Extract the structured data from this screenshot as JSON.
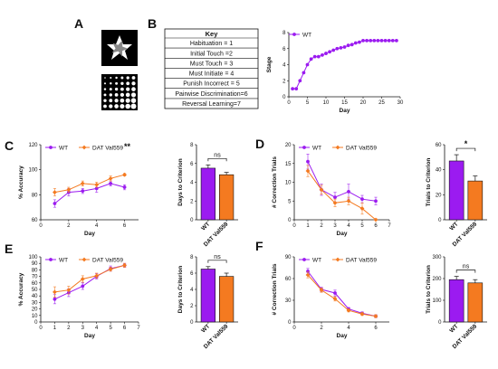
{
  "colors": {
    "wt": "#9b1bf0",
    "val": "#f47a20",
    "axis": "#111111"
  },
  "panel_labels": [
    "A",
    "B",
    "C",
    "D",
    "E",
    "F"
  ],
  "key": {
    "title": "Key",
    "items": [
      "Habituation = 1",
      "Initial Touch =2",
      "Must Touch = 3",
      "Must Initiate = 4",
      "Punish Incorrect = 5",
      "Pairwise Discrimination=6",
      "Reversal Learning=7"
    ]
  },
  "chart_data": [
    {
      "id": "B",
      "type": "line",
      "xlabel": "Day",
      "ylabel": "Stage",
      "xlim": [
        0,
        30
      ],
      "ylim": [
        0,
        8
      ],
      "xticks": [
        0,
        5,
        10,
        15,
        20,
        25,
        30
      ],
      "yticks": [
        0,
        2,
        4,
        6,
        8
      ],
      "legend": "top-left",
      "series": [
        {
          "name": "WT",
          "color": "#9b1bf0",
          "x": [
            1,
            2,
            3,
            4,
            5,
            6,
            7,
            8,
            9,
            10,
            11,
            12,
            13,
            14,
            15,
            16,
            17,
            18,
            19,
            20,
            21,
            22,
            23,
            24,
            25,
            26,
            27,
            28,
            29
          ],
          "y": [
            1,
            1,
            2,
            3,
            4,
            4.7,
            5,
            5,
            5.2,
            5.4,
            5.6,
            5.8,
            6,
            6.1,
            6.2,
            6.4,
            6.5,
            6.7,
            6.8,
            7,
            7,
            7,
            7,
            7,
            7,
            7,
            7,
            7,
            7
          ]
        }
      ]
    },
    {
      "id": "C-line",
      "type": "line",
      "xlabel": "Day",
      "ylabel": "% Accuracy",
      "xlim": [
        0,
        7
      ],
      "ylim": [
        60,
        120
      ],
      "xticks": [
        0,
        2,
        4,
        6
      ],
      "yticks": [
        60,
        80,
        100,
        120
      ],
      "legend": "top",
      "annotation": "**",
      "series": [
        {
          "name": "WT",
          "color": "#9b1bf0",
          "x": [
            1,
            2,
            3,
            4,
            5,
            6
          ],
          "y": [
            73,
            82,
            83,
            85,
            89,
            86
          ],
          "err": [
            3,
            3,
            2,
            3,
            2,
            2
          ]
        },
        {
          "name": "DAT Val559",
          "color": "#f47a20",
          "x": [
            1,
            2,
            3,
            4,
            5,
            6
          ],
          "y": [
            82,
            84,
            89,
            88,
            93,
            96
          ],
          "err": [
            3,
            2,
            2,
            2,
            2,
            1
          ]
        }
      ]
    },
    {
      "id": "C-bar",
      "type": "bar",
      "ylabel": "Days to  Criterion",
      "categories": [
        "WT",
        "DAT Val559"
      ],
      "ylim": [
        0,
        8
      ],
      "yticks": [
        0,
        2,
        4,
        6,
        8
      ],
      "values": [
        5.5,
        4.8
      ],
      "err": [
        0.35,
        0.25
      ],
      "significance": "ns"
    },
    {
      "id": "D-line",
      "type": "line",
      "xlabel": "Day",
      "ylabel": "# Correction  Trials",
      "xlim": [
        0,
        7
      ],
      "ylim": [
        0,
        20
      ],
      "xticks": [
        0,
        1,
        2,
        3,
        4,
        5,
        6,
        7
      ],
      "yticks": [
        0,
        5,
        10,
        15,
        20
      ],
      "legend": "top",
      "series": [
        {
          "name": "WT",
          "color": "#9b1bf0",
          "x": [
            1,
            2,
            3,
            4,
            5,
            6
          ],
          "y": [
            15.5,
            8,
            6,
            7.5,
            5.5,
            5
          ],
          "err": [
            2,
            1.5,
            1.3,
            2,
            1,
            1
          ]
        },
        {
          "name": "DAT Val559",
          "color": "#f47a20",
          "x": [
            1,
            2,
            3,
            4,
            5,
            6
          ],
          "y": [
            13,
            8,
            4.5,
            5,
            3,
            0
          ],
          "err": [
            1.5,
            1.2,
            1,
            1,
            1.5,
            0.3
          ]
        }
      ]
    },
    {
      "id": "D-bar",
      "type": "bar",
      "ylabel": "Trials to Criterion",
      "categories": [
        "WT",
        "DAT Val559"
      ],
      "ylim": [
        0,
        60
      ],
      "yticks": [
        0,
        20,
        40,
        60
      ],
      "values": [
        47,
        31
      ],
      "err": [
        5,
        4
      ],
      "significance": "*"
    },
    {
      "id": "E-line",
      "type": "line",
      "xlabel": "Day",
      "ylabel": "% Accuracy",
      "xlim": [
        0,
        7
      ],
      "ylim": [
        0,
        100
      ],
      "xticks": [
        0,
        1,
        2,
        3,
        4,
        5,
        6,
        7
      ],
      "yticks": [
        0,
        10,
        20,
        30,
        40,
        50,
        60,
        70,
        80,
        90,
        100
      ],
      "legend": "top",
      "series": [
        {
          "name": "WT",
          "color": "#9b1bf0",
          "x": [
            1,
            2,
            3,
            4,
            5,
            6
          ],
          "y": [
            35,
            45,
            55,
            70,
            82,
            87
          ],
          "err": [
            7,
            6,
            5,
            4,
            4,
            3
          ]
        },
        {
          "name": "DAT Val559",
          "color": "#f47a20",
          "x": [
            1,
            2,
            3,
            4,
            5,
            6
          ],
          "y": [
            46,
            49,
            66,
            71,
            81,
            87
          ],
          "err": [
            8,
            6,
            5,
            4,
            3,
            3
          ]
        }
      ]
    },
    {
      "id": "E-bar",
      "type": "bar",
      "ylabel": "Days to  Criterion",
      "categories": [
        "WT",
        "DAT Val559"
      ],
      "ylim": [
        0,
        8
      ],
      "yticks": [
        0,
        2,
        4,
        6,
        8
      ],
      "values": [
        6.5,
        5.6
      ],
      "err": [
        0.3,
        0.4
      ],
      "significance": "ns"
    },
    {
      "id": "F-line",
      "type": "line",
      "xlabel": "Day",
      "ylabel": "# Correction  Trials",
      "xlim": [
        0,
        7
      ],
      "ylim": [
        0,
        90
      ],
      "xticks": [
        0,
        2,
        4,
        6
      ],
      "yticks": [
        0,
        30,
        60,
        90
      ],
      "legend": "top",
      "series": [
        {
          "name": "WT",
          "color": "#9b1bf0",
          "x": [
            1,
            2,
            3,
            4,
            5,
            6
          ],
          "y": [
            70,
            45,
            40,
            18,
            12,
            8
          ],
          "err": [
            4,
            3,
            4,
            2,
            2,
            2
          ]
        },
        {
          "name": "DAT Val559",
          "color": "#f47a20",
          "x": [
            1,
            2,
            3,
            4,
            5,
            6
          ],
          "y": [
            65,
            44,
            32,
            16,
            11,
            8
          ],
          "err": [
            4,
            3,
            3,
            2,
            2,
            2
          ]
        }
      ]
    },
    {
      "id": "F-bar",
      "type": "bar",
      "ylabel": "Trials to Criterion",
      "categories": [
        "WT",
        "DAT Val559"
      ],
      "ylim": [
        0,
        300
      ],
      "yticks": [
        0,
        100,
        200,
        300
      ],
      "values": [
        195,
        180
      ],
      "err": [
        15,
        15
      ],
      "significance": "ns"
    }
  ]
}
